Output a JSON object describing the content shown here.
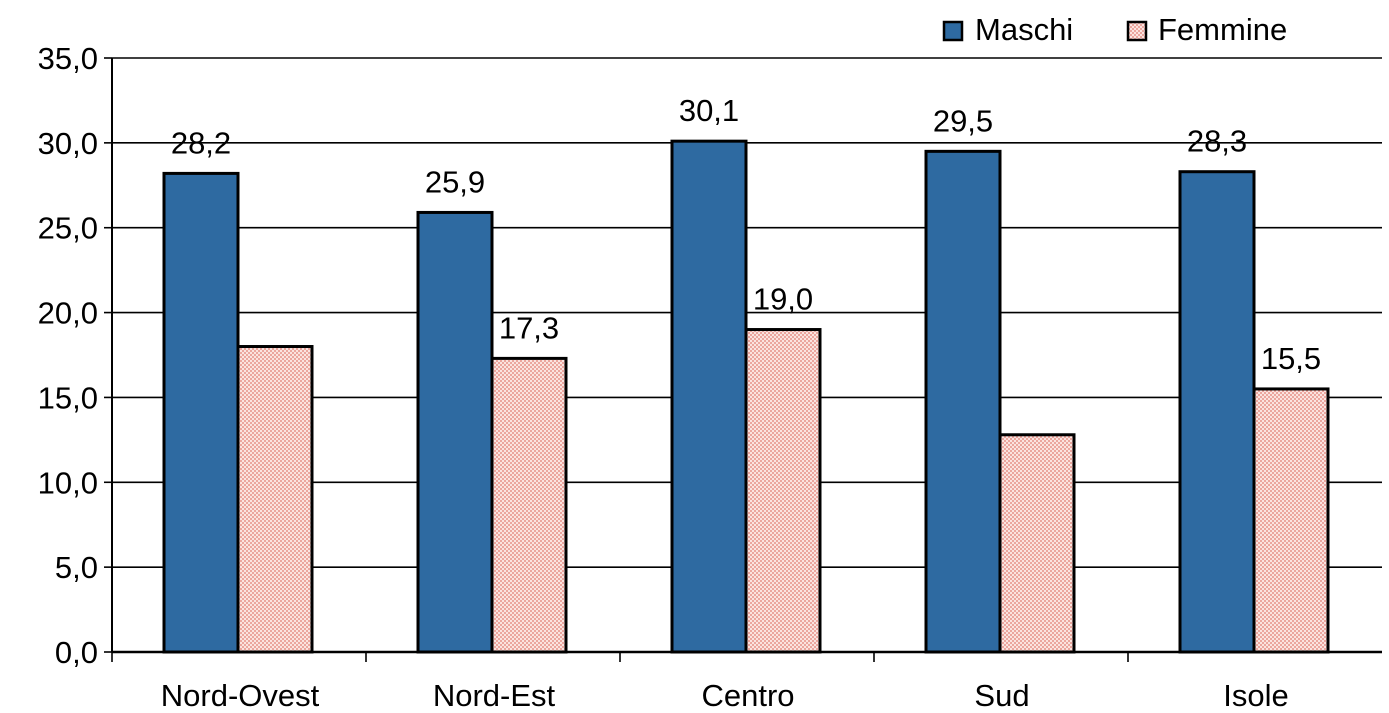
{
  "chart_data": {
    "type": "bar",
    "categories": [
      "Nord-Ovest",
      "Nord-Est",
      "Centro",
      "Sud",
      "Isole"
    ],
    "series": [
      {
        "name": "Maschi",
        "values": [
          28.2,
          25.9,
          30.1,
          29.5,
          28.3
        ],
        "labels": [
          "28,2",
          "25,9",
          "30,1",
          "29,5",
          "28,3"
        ],
        "color": "#2e6aa1"
      },
      {
        "name": "Femmine",
        "values": [
          18.0,
          17.3,
          19.0,
          12.8,
          15.5
        ],
        "labels": [
          "",
          "17,3",
          "19,0",
          "",
          "15,5"
        ],
        "color": "#f5c9c2"
      }
    ],
    "yticks": [
      "0,0",
      "5,0",
      "10,0",
      "15,0",
      "20,0",
      "25,0",
      "30,0",
      "35,0"
    ],
    "ylim": [
      0,
      35
    ],
    "ystep": 5,
    "title": "",
    "xlabel": "",
    "ylabel": "",
    "grid": true,
    "legend_position": "top-right"
  }
}
